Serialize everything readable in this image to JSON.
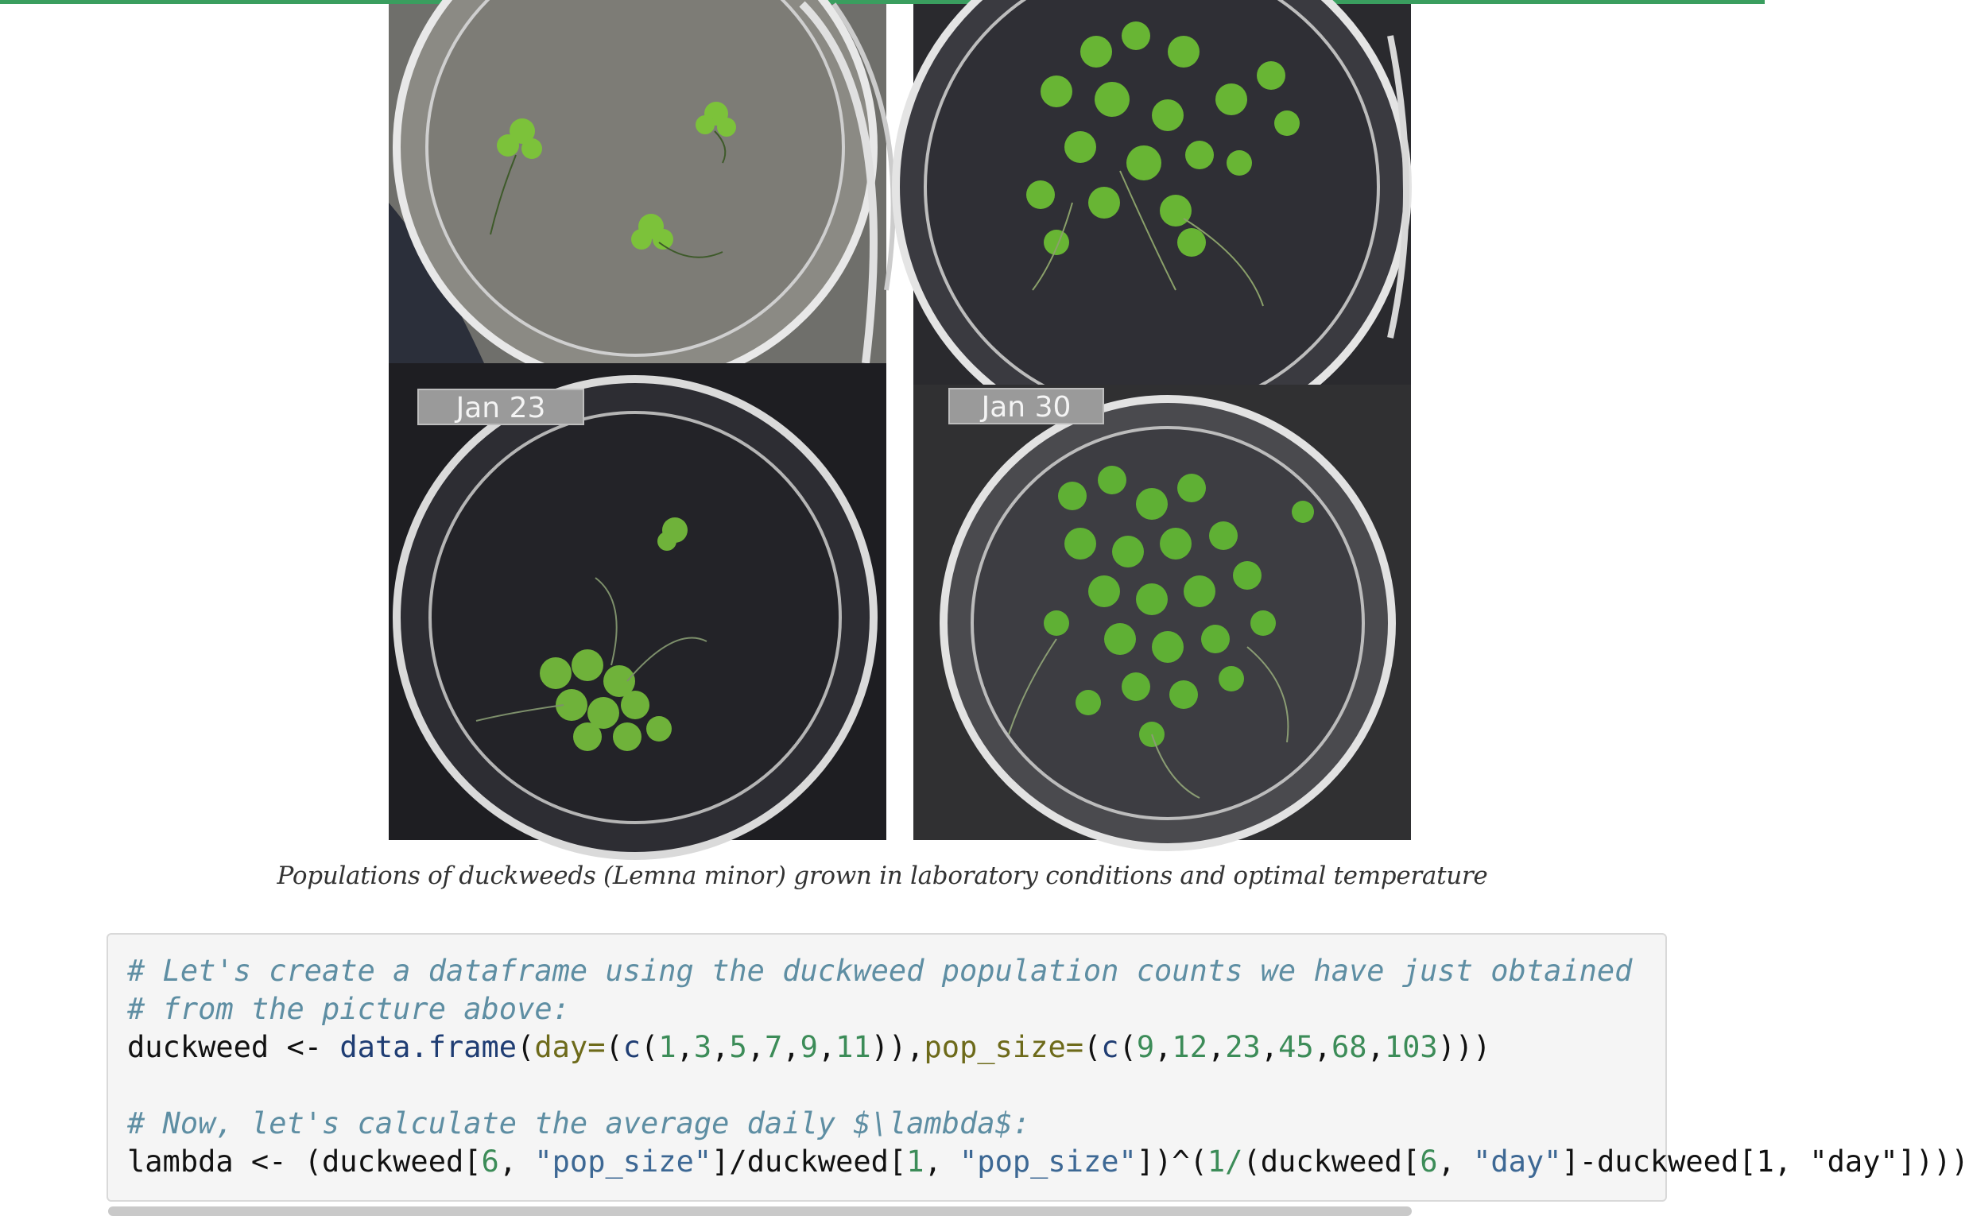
{
  "figure": {
    "panels": [
      {
        "label": ""
      },
      {
        "label": ""
      },
      {
        "label": "Jan 23"
      },
      {
        "label": "Jan 30"
      }
    ],
    "caption": "Populations of duckweeds (Lemna minor) grown in laboratory conditions and optimal temperature"
  },
  "code": {
    "comment_1": "# Let's create a dataframe using the duckweed population counts we have just obtained",
    "comment_2": "# from the picture above:",
    "line_3": {
      "var": "duckweed",
      "op": " <- ",
      "fn": "data.frame",
      "p1": "(",
      "arg1": "day=",
      "p2": "(",
      "c1": "c",
      "p3": "(",
      "days": [
        "1",
        "3",
        "5",
        "7",
        "9",
        "11"
      ],
      "p4": ")),",
      "arg2": "pop_size=",
      "p5": "(",
      "c2": "c",
      "p6": "(",
      "pops": [
        "9",
        "12",
        "23",
        "45",
        "68",
        "103"
      ],
      "p7": ")))"
    },
    "comment_3": "# Now, let's calculate the average daily $\\lambda$:",
    "line_5": {
      "a": "lambda <- (duckweed[",
      "n1": "6",
      "b": ", ",
      "s1": "\"pop_size\"",
      "c": "]/duckweed[",
      "n2": "1",
      "d": ", ",
      "s2": "\"pop_size\"",
      "e": "])^(",
      "n3": "1/",
      "f": "(duckweed[",
      "n4": "6",
      "g": ", ",
      "s3": "\"day\"",
      "h": "]-duckweed[1, \"day\"])))"
    }
  }
}
